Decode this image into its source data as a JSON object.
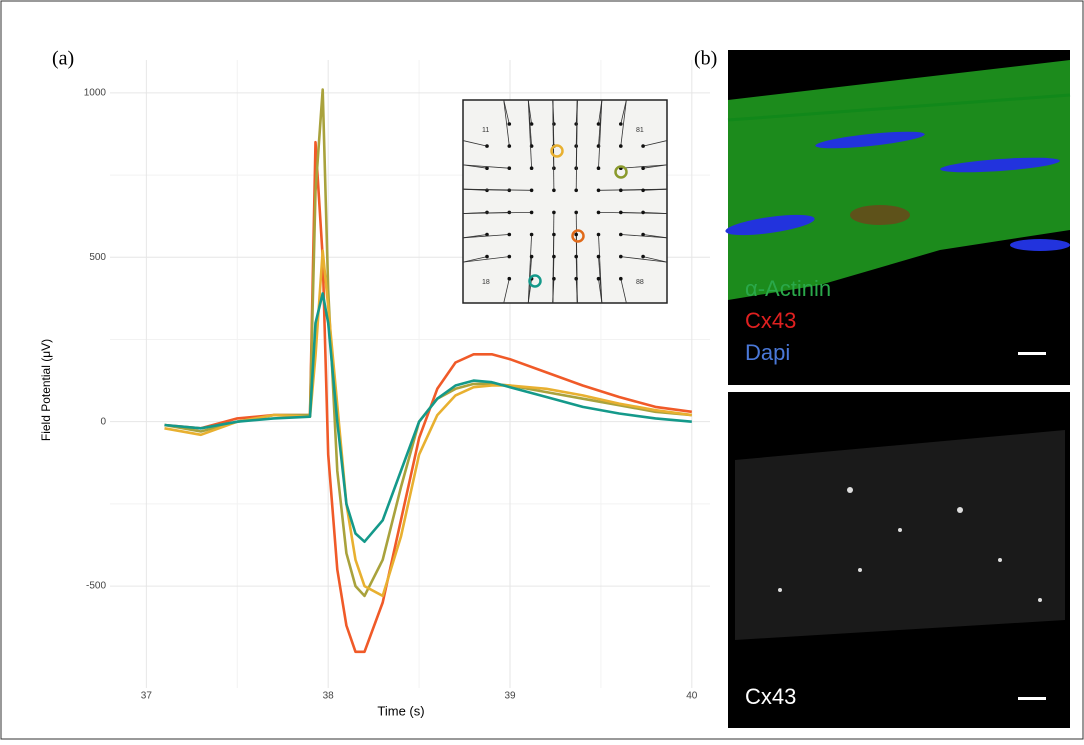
{
  "chart_data": {
    "type": "line",
    "xlabel": "Time (s)",
    "ylabel": "Field Potential (μV)",
    "x": [
      37.1,
      37.3,
      37.5,
      37.7,
      37.9,
      37.93,
      37.97,
      38.0,
      38.05,
      38.1,
      38.15,
      38.2,
      38.3,
      38.4,
      38.5,
      38.6,
      38.7,
      38.8,
      38.9,
      39.0,
      39.2,
      39.4,
      39.6,
      39.8,
      40.0
    ],
    "series": [
      {
        "color": "#f05a28",
        "values": [
          -10,
          -20,
          10,
          20,
          20,
          850,
          500,
          -100,
          -450,
          -620,
          -700,
          -700,
          -550,
          -300,
          -50,
          100,
          180,
          205,
          205,
          190,
          150,
          110,
          75,
          45,
          30
        ]
      },
      {
        "color": "#a9a23c",
        "values": [
          -10,
          -30,
          0,
          20,
          20,
          700,
          1010,
          400,
          -150,
          -400,
          -500,
          -530,
          -420,
          -200,
          0,
          70,
          100,
          115,
          115,
          110,
          90,
          70,
          50,
          30,
          20
        ]
      },
      {
        "color": "#e8b030",
        "values": [
          -20,
          -40,
          0,
          20,
          15,
          200,
          520,
          350,
          50,
          -250,
          -420,
          -500,
          -530,
          -350,
          -100,
          20,
          80,
          105,
          110,
          110,
          100,
          80,
          55,
          35,
          20
        ]
      },
      {
        "color": "#14998a",
        "values": [
          -10,
          -20,
          0,
          10,
          15,
          300,
          390,
          300,
          0,
          -250,
          -340,
          -365,
          -300,
          -150,
          0,
          70,
          110,
          125,
          120,
          105,
          75,
          45,
          25,
          10,
          0
        ]
      }
    ],
    "xlim": [
      36.8,
      40.1
    ],
    "xticks": [
      37,
      38,
      39,
      40
    ],
    "ylim": [
      -810,
      1100
    ],
    "yticks": [
      -500,
      0,
      500,
      1000
    ],
    "grid": true
  },
  "panel_labels": [
    "(a)",
    "(b)"
  ],
  "inset_labels": [
    "11",
    "81",
    "18",
    "88"
  ],
  "image_labels": {
    "merge": [
      "α-Actinin",
      "Cx43",
      "Dapi"
    ],
    "single": "Cx43"
  }
}
